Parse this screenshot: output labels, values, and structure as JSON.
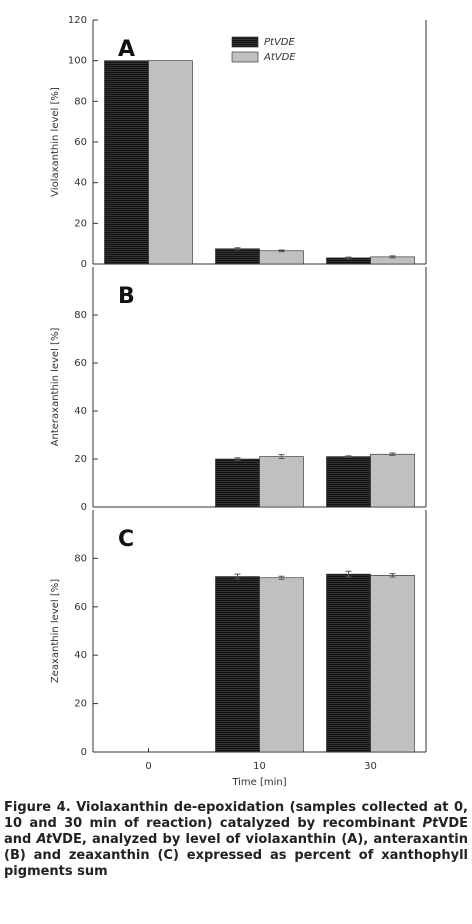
{
  "chart_data": [
    {
      "type": "bar",
      "panel": "A",
      "ylabel": "Violaxanthin level [%]",
      "series": [
        {
          "name": "PtVDE",
          "color": "#111111",
          "values": [
            100,
            7.5,
            3
          ],
          "errors": [
            0,
            0.5,
            0.4
          ]
        },
        {
          "name": "AtVDE",
          "color": "#c0c0c0",
          "values": [
            100,
            6.5,
            3.5
          ],
          "errors": [
            0,
            0.4,
            0.5
          ]
        }
      ],
      "ylim": [
        0,
        120
      ],
      "yticks": [
        0,
        20,
        40,
        60,
        80,
        100,
        120
      ],
      "legend": "upper-center"
    },
    {
      "type": "bar",
      "panel": "B",
      "ylabel": "Anteraxanthin level [%]",
      "series": [
        {
          "color": "#111111",
          "values": [
            0,
            20,
            21
          ],
          "errors": [
            0,
            0.5,
            0.3
          ]
        },
        {
          "color": "#c0c0c0",
          "values": [
            0,
            21,
            22
          ],
          "errors": [
            0,
            0.8,
            0.5
          ]
        }
      ],
      "ylim": [
        0,
        100
      ],
      "yticks": [
        0,
        20,
        40,
        60,
        80
      ]
    },
    {
      "type": "bar",
      "panel": "C",
      "ylabel": "Zeaxanthin level [%]",
      "xlabel": "Time [min]",
      "categories": [
        "0",
        "10",
        "30"
      ],
      "series": [
        {
          "color": "#111111",
          "values": [
            0,
            72.5,
            73.5
          ],
          "errors": [
            0,
            1,
            1.2
          ]
        },
        {
          "color": "#c0c0c0",
          "values": [
            0,
            72,
            73
          ],
          "errors": [
            0,
            0.6,
            0.7
          ]
        }
      ],
      "ylim": [
        0,
        100
      ],
      "yticks": [
        0,
        20,
        40,
        60,
        80
      ]
    }
  ],
  "caption": [
    "Figure 4. Violaxanthin de-epoxidation (samples collected at 0, 10 and 30 min of reaction) catalyzed by recombinant ",
    "Pt",
    "VDE and ",
    "At",
    "VDE, analyzed by level of violaxanthin (A), anteraxantin (B) and zeaxanthin (C) expressed as percent of xanthophyll pigments sum"
  ]
}
